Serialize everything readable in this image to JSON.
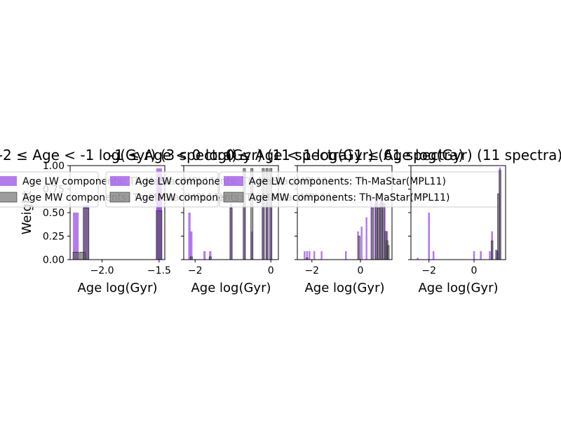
{
  "figure": {
    "ylabel": "Weight"
  },
  "legend_labels": {
    "lw": "Age LW components: Th-MaStar(MPL11)",
    "mw": "Age MW components: Th-MaStar(MPL11)"
  },
  "colors": {
    "lw": "#9b4dea",
    "mw": "#4d4d4d",
    "axis": "#000000"
  },
  "chart_data": [
    {
      "type": "bar",
      "title": "-2 ≤ Age < -1 log(Gyr) (3 spectra)",
      "xlabel": "Age log(Gyr)",
      "ylabel": "Weight",
      "xlim": [
        -2.28,
        -1.45
      ],
      "ylim": [
        0,
        1.0
      ],
      "xticks": [
        -2.0,
        -1.5
      ],
      "xtick_labels": [
        "−2.0",
        "−1.5"
      ],
      "yticks": [
        0.0,
        0.25,
        0.5,
        0.75,
        1.0
      ],
      "ytick_labels": [
        "0.00",
        "0.25",
        "0.50",
        "0.75",
        "1.00"
      ],
      "bar_width": 0.05,
      "series": [
        {
          "name": "Age LW components: Th-MaStar(MPL11)",
          "x": [
            -2.23,
            -2.14,
            -1.5,
            -1.5
          ],
          "values": [
            0.5,
            0.58,
            0.97,
            0.9
          ]
        },
        {
          "name": "Age MW components: Th-MaStar(MPL11)",
          "x": [
            -2.23,
            -2.17,
            -2.14,
            -1.5
          ],
          "values": [
            0.08,
            0.08,
            0.55,
            0.52
          ]
        }
      ]
    },
    {
      "type": "bar",
      "title": "-1 ≤ Age < 0 log(Gyr) (11 spectra)",
      "xlabel": "Age log(Gyr)",
      "ylabel": "",
      "xlim": [
        -2.3,
        0.2
      ],
      "ylim": [
        0,
        1.0
      ],
      "xticks": [
        -2,
        0
      ],
      "xtick_labels": [
        "−2",
        "0"
      ],
      "yticks": [
        0.0,
        0.25,
        0.5,
        0.75,
        1.0
      ],
      "ytick_labels": [
        "",
        "",
        "",
        "",
        ""
      ],
      "bar_width": 0.06,
      "series": [
        {
          "name": "Age LW components: Th-MaStar(MPL11)",
          "x": [
            -2.15,
            -2.1,
            -1.75,
            -1.6,
            -1.05,
            -0.7,
            -0.5,
            -0.2,
            -0.1,
            0.0
          ],
          "values": [
            0.5,
            0.3,
            0.09,
            0.09,
            0.6,
            0.6,
            0.3,
            0.6,
            0.6,
            0.6
          ]
        },
        {
          "name": "Age MW components: Th-MaStar(MPL11)",
          "x": [
            -2.1,
            -1.6,
            -1.05,
            -0.7,
            -0.5,
            -0.2,
            -0.1,
            0.0
          ],
          "values": [
            0.03,
            0.03,
            0.55,
            0.97,
            0.97,
            0.97,
            0.97,
            0.97
          ]
        }
      ]
    },
    {
      "type": "bar",
      "title": "0 ≤ Age < 1 log(Gyr) (61 spectra)",
      "xlabel": "Age log(Gyr)",
      "ylabel": "",
      "xlim": [
        -2.6,
        1.3
      ],
      "ylim": [
        0,
        1.0
      ],
      "xticks": [
        -2,
        0
      ],
      "xtick_labels": [
        "−2",
        "0"
      ],
      "yticks": [
        0.0,
        0.25,
        0.5,
        0.75,
        1.0
      ],
      "ytick_labels": [
        "",
        "",
        "",
        "",
        ""
      ],
      "bar_width": 0.07,
      "series": [
        {
          "name": "Age LW components: Th-MaStar(MPL11)",
          "x": [
            -2.3,
            -2.2,
            -2.1,
            -1.9,
            -1.6,
            -0.6,
            -0.1,
            0.05,
            0.25,
            0.45,
            0.6,
            0.7,
            0.8,
            0.9,
            1.0,
            1.1
          ],
          "values": [
            0.09,
            0.09,
            0.09,
            0.09,
            0.09,
            0.09,
            0.3,
            0.35,
            0.45,
            0.7,
            0.6,
            0.65,
            0.6,
            0.65,
            0.6,
            0.3
          ]
        },
        {
          "name": "Age MW components: Th-MaStar(MPL11)",
          "x": [
            -2.2,
            -0.05,
            0.5,
            0.65,
            0.75,
            0.85,
            0.95,
            1.05,
            1.1,
            1.15
          ],
          "values": [
            0.02,
            0.25,
            0.55,
            0.7,
            0.55,
            0.7,
            0.6,
            0.3,
            0.2,
            0.15
          ]
        }
      ]
    },
    {
      "type": "bar",
      "title": "1 ≤ Age log(Gyr) (11 spectra)",
      "xlabel": "Age log(Gyr)",
      "ylabel": "",
      "xlim": [
        -2.8,
        1.4
      ],
      "ylim": [
        0,
        1.0
      ],
      "xticks": [
        -2,
        0
      ],
      "xtick_labels": [
        "−2",
        "0"
      ],
      "yticks": [
        0.0,
        0.25,
        0.5,
        0.75,
        1.0
      ],
      "ytick_labels": [
        "",
        "",
        "",
        "",
        ""
      ],
      "bar_width": 0.08,
      "series": [
        {
          "name": "Age LW components: Th-MaStar(MPL11)",
          "x": [
            -2.5,
            -2.0,
            -1.8,
            0.0,
            0.3,
            0.7,
            0.8,
            1.0,
            1.05,
            1.15
          ],
          "values": [
            0.02,
            0.5,
            0.09,
            0.09,
            0.09,
            0.09,
            0.3,
            0.09,
            0.09,
            0.98
          ]
        },
        {
          "name": "Age MW components: Th-MaStar(MPL11)",
          "x": [
            0.8,
            1.0,
            1.08,
            1.15
          ],
          "values": [
            0.2,
            0.1,
            0.7,
            0.95
          ]
        }
      ]
    }
  ]
}
